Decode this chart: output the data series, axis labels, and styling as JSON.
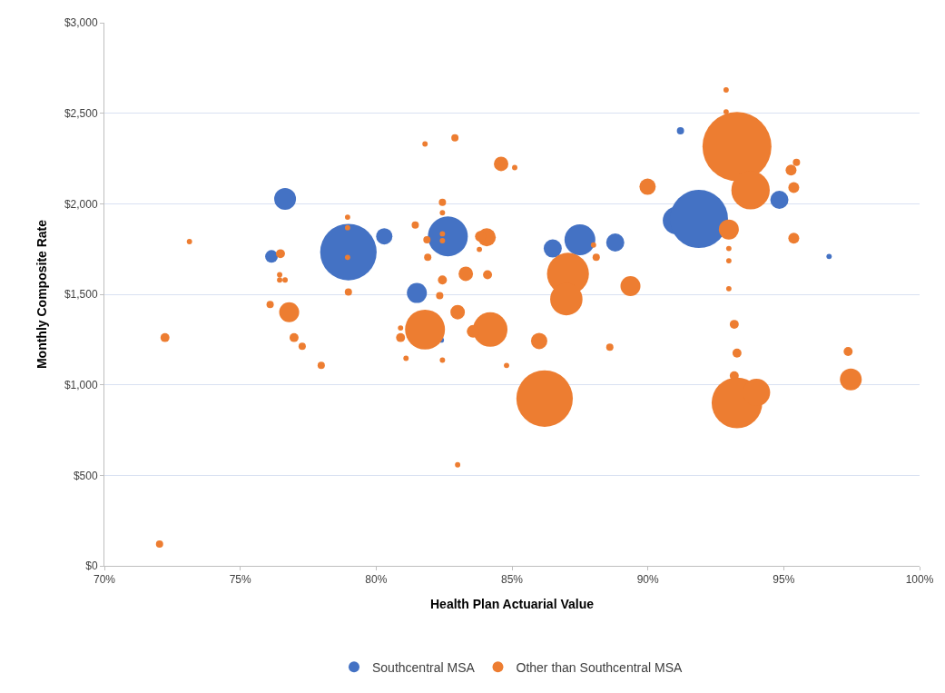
{
  "chart_data": {
    "type": "bubble",
    "relative": false,
    "xlabel": "Health Plan Actuarial Value",
    "ylabel": "Monthly Composite Rate",
    "xlim": [
      70,
      100
    ],
    "xticks": [
      {
        "value": 70,
        "label": "70%"
      },
      {
        "value": 75,
        "label": "75%"
      },
      {
        "value": 80,
        "label": "80%"
      },
      {
        "value": 85,
        "label": "85%"
      },
      {
        "value": 90,
        "label": "90%"
      },
      {
        "value": 95,
        "label": "95%"
      },
      {
        "value": 100,
        "label": "100%"
      }
    ],
    "ylim": [
      0,
      3000
    ],
    "yticks": [
      {
        "value": 0,
        "label": "$0"
      },
      {
        "value": 500,
        "label": "$500"
      },
      {
        "value": 1000,
        "label": "$1,000"
      },
      {
        "value": 1500,
        "label": "$1,500"
      },
      {
        "value": 2000,
        "label": "$2,000"
      },
      {
        "value": 2500,
        "label": "$2,500"
      },
      {
        "value": 3000,
        "label": "$3,000"
      }
    ],
    "grid": "y",
    "legend": "bottom",
    "series": [
      {
        "name": "Southcentral MSA",
        "color": "#4472c4",
        "x": [
          76.15,
          76.65,
          78.98,
          80.3,
          81.5,
          82.4,
          82.64,
          86.5,
          87.5,
          88.8,
          91.2,
          91.05,
          91.88,
          94.84,
          96.67
        ],
        "values": [
          1709,
          2027,
          1733,
          1820,
          1507,
          1247,
          1820,
          1753,
          1801,
          1786,
          2403,
          1907,
          1916,
          2022,
          1709
        ],
        "sizes": [
          0.034,
          0.1,
          0.67,
          0.056,
          0.084,
          0.006,
          0.335,
          0.069,
          0.2,
          0.069,
          0.011,
          0.156,
          0.71,
          0.069,
          0.006
        ]
      },
      {
        "name": "Other than Southcentral MSA",
        "color": "#ed7d31",
        "x": [
          72.03,
          72.23,
          73.13,
          76.1,
          76.8,
          76.98,
          77.28,
          77.98,
          76.48,
          76.45,
          76.45,
          76.65,
          78.95,
          78.95,
          78.95,
          78.98,
          82.9,
          81.8,
          84.6,
          85.1,
          82.44,
          82.44,
          81.44,
          81.87,
          82.44,
          82.44,
          84.07,
          83.84,
          83.8,
          81.9,
          83.3,
          84.1,
          82.44,
          82.34,
          83.0,
          81.8,
          84.2,
          83.57,
          80.9,
          80.9,
          81.1,
          82.44,
          84.8,
          86.0,
          88.6,
          86.2,
          87.06,
          87.0,
          88.0,
          88.1,
          89.36,
          89.99,
          92.88,
          92.88,
          93.28,
          93.78,
          95.47,
          95.27,
          95.37,
          92.98,
          92.98,
          92.98,
          92.98,
          95.37,
          93.18,
          93.28,
          93.18,
          93.28,
          94.0,
          97.37,
          97.47,
          83.0
        ],
        "values": [
          120,
          1261,
          1791,
          1444,
          1401,
          1261,
          1213,
          1107,
          1724,
          1608,
          1579,
          1579,
          1926,
          1868,
          1704,
          1512,
          2364,
          2330,
          2220,
          2200,
          2008,
          1950,
          1883,
          1801,
          1834,
          1796,
          1815,
          1820,
          1748,
          1704,
          1613,
          1608,
          1579,
          1493,
          1401,
          1305,
          1305,
          1295,
          1314,
          1261,
          1146,
          1136,
          1107,
          1242,
          1208,
          924,
          1613,
          1473,
          1772,
          1704,
          1545,
          2094,
          2629,
          2508,
          2316,
          2075,
          2229,
          2186,
          2090,
          1858,
          1753,
          1685,
          1531,
          1810,
          1334,
          1175,
          1050,
          900,
          958,
          1184,
          1030,
          558
        ],
        "sizes": [
          0.011,
          0.017,
          0.006,
          0.011,
          0.084,
          0.017,
          0.011,
          0.011,
          0.017,
          0.006,
          0.006,
          0.006,
          0.006,
          0.006,
          0.006,
          0.011,
          0.011,
          0.006,
          0.044,
          0.006,
          0.011,
          0.006,
          0.011,
          0.011,
          0.006,
          0.006,
          0.069,
          0.025,
          0.006,
          0.011,
          0.044,
          0.017,
          0.017,
          0.011,
          0.044,
          0.335,
          0.25,
          0.034,
          0.006,
          0.017,
          0.006,
          0.006,
          0.006,
          0.056,
          0.011,
          0.67,
          0.37,
          0.22,
          0.006,
          0.011,
          0.084,
          0.056,
          0.006,
          0.006,
          1,
          0.31,
          0.011,
          0.025,
          0.025,
          0.084,
          0.006,
          0.006,
          0.006,
          0.025,
          0.017,
          0.017,
          0.017,
          0.54,
          0.156,
          0.017,
          0.1,
          0.006
        ]
      }
    ]
  }
}
